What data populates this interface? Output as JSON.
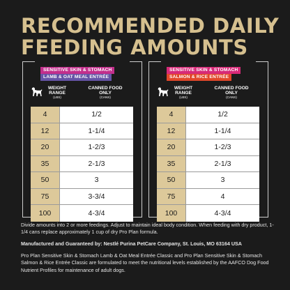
{
  "title": {
    "line1": "RECOMMENDED DAILY",
    "line2": "FEEDING AMOUNTS"
  },
  "headers": {
    "weight": "WEIGHT RANGE",
    "weight_unit": "(LBS)",
    "canned": "CANNED FOOD ONLY",
    "canned_unit": "(CANS)"
  },
  "panels": [
    {
      "badge_top": "SENSITIVE SKIN & STOMACH",
      "badge_bottom": "LAMB & OAT MEAL ENTRÉE",
      "rows": [
        {
          "weight": "4",
          "cans": "1/2"
        },
        {
          "weight": "12",
          "cans": "1-1/4"
        },
        {
          "weight": "20",
          "cans": "1-2/3"
        },
        {
          "weight": "35",
          "cans": "2-1/3"
        },
        {
          "weight": "50",
          "cans": "3"
        },
        {
          "weight": "75",
          "cans": "3-3/4"
        },
        {
          "weight": "100",
          "cans": "4-3/4"
        }
      ]
    },
    {
      "badge_top": "SENSITIVE SKIN & STOMACH",
      "badge_bottom": "SALMON & RICE ENTRÉE",
      "rows": [
        {
          "weight": "4",
          "cans": "1/2"
        },
        {
          "weight": "12",
          "cans": "1-1/4"
        },
        {
          "weight": "20",
          "cans": "1-2/3"
        },
        {
          "weight": "35",
          "cans": "2-1/3"
        },
        {
          "weight": "50",
          "cans": "3"
        },
        {
          "weight": "75",
          "cans": "4"
        },
        {
          "weight": "100",
          "cans": "4-3/4"
        }
      ]
    }
  ],
  "notes": {
    "feeding": "Divide amounts into 2 or more feedings. Adjust to maintain ideal body condition. When feeding with dry product, 1-1/4 cans replace approximately 1 cup of dry Pro Plan formula.",
    "manufacturer": "Manufactured and Guaranteed by: Nestlé Purina PetCare Company, St. Louis, MO 63164 USA",
    "aafco": "Pro Plan Sensitive Skin & Stomach Lamb & Oat Meal Entrée Classic and Pro Plan Sensitive Skin & Stomach Salmon & Rice Entrée Classic are formulated to meet the nutritional levels established by the AAFCO Dog Food Nutrient Profiles for maintenance of adult dogs."
  },
  "icons": {
    "dog": "dog-silhouette-icon"
  },
  "colors": {
    "background": "#1b1b1b",
    "gold": "#d6c08f",
    "weight_cell": "#ddc99a",
    "magenta": "#c22f8c",
    "purple": "#6554a6",
    "orange": "#e1472a"
  }
}
